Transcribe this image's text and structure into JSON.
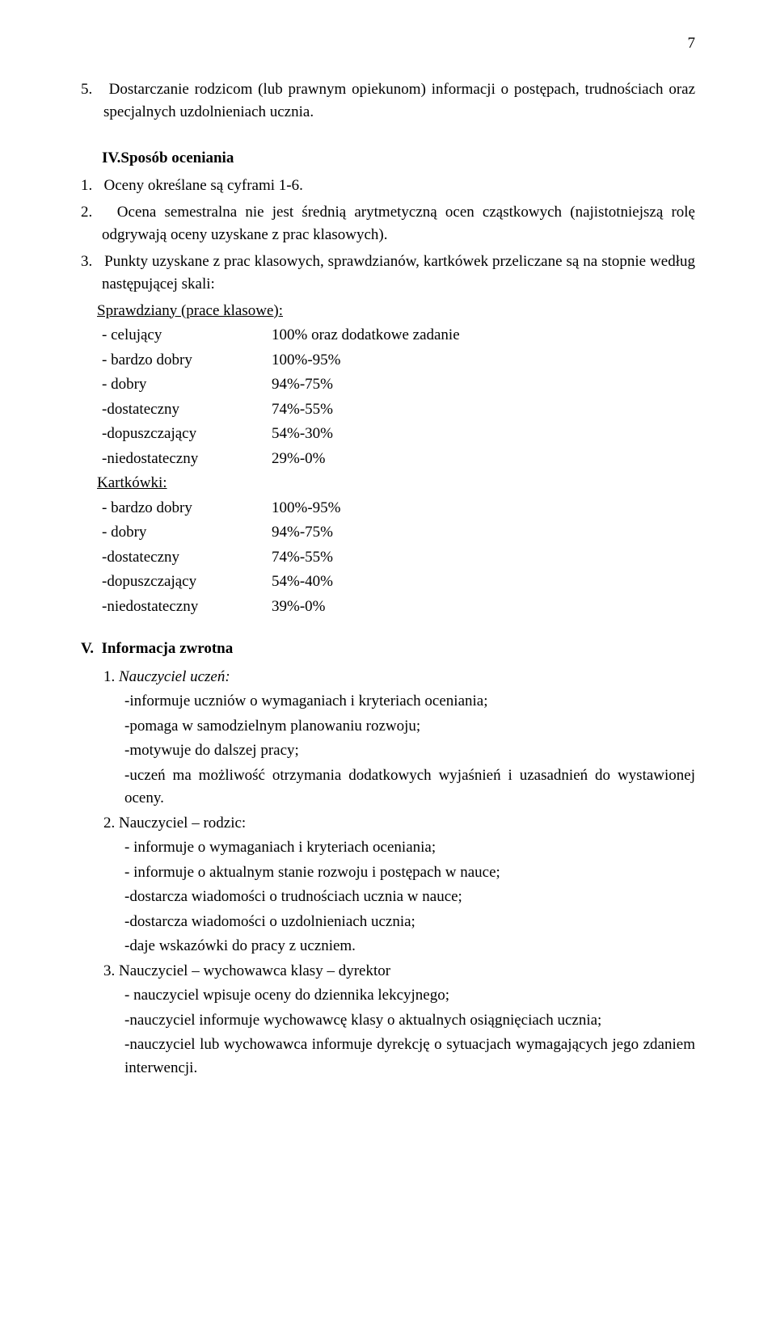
{
  "page_number": "7",
  "item5": {
    "num": "5.",
    "text": "Dostarczanie rodzicom (lub prawnym opiekunom) informacji o postępach, trudnościach oraz specjalnych uzdolnieniach ucznia."
  },
  "section_iv": {
    "title": "IV.Sposób oceniania",
    "p1": {
      "num": "1.",
      "text": "Oceny określane są cyframi 1-6."
    },
    "p2": {
      "num": "2.",
      "text": "Ocena semestralna nie jest średnią arytmetyczną ocen cząstkowych (najistotniejszą rolę odgrywają oceny uzyskane z prac klasowych)."
    },
    "p3": {
      "num": "3.",
      "text": "Punkty uzyskane z prac klasowych, sprawdzianów, kartkówek przeliczane są na stopnie według następującej skali:"
    },
    "spraw_label": " Sprawdziany (prace klasowe):",
    "spraw_rows": [
      {
        "label": "- celujący",
        "value": "100% oraz dodatkowe zadanie"
      },
      {
        "label": "- bardzo dobry",
        "value": "100%-95%"
      },
      {
        "label": "- dobry",
        "value": "94%-75%"
      },
      {
        "label": "-dostateczny",
        "value": "74%-55%"
      },
      {
        "label": "-dopuszczający",
        "value": "54%-30%"
      },
      {
        "label": "-niedostateczny",
        "value": "29%-0%"
      }
    ],
    "kart_label": "Kartkówki:",
    "kart_rows": [
      {
        "label": "- bardzo dobry",
        "value": "100%-95%"
      },
      {
        "label": "- dobry",
        "value": "94%-75%"
      },
      {
        "label": "-dostateczny",
        "value": "74%-55%"
      },
      {
        "label": "-dopuszczający",
        "value": "54%-40%"
      },
      {
        "label": "-niedostateczny",
        "value": "39%-0%"
      }
    ]
  },
  "section_v": {
    "title_prefix": "V.",
    "title_text": "Informacja zwrotna",
    "sub1": {
      "num": "1.",
      "label": "Nauczyciel uczeń:"
    },
    "sub1_items": [
      "-informuje uczniów o wymaganiach i kryteriach oceniania;",
      "-pomaga w samodzielnym planowaniu rozwoju;",
      "-motywuje do dalszej pracy;",
      "-uczeń ma możliwość otrzymania dodatkowych wyjaśnień i uzasadnień do wystawionej oceny."
    ],
    "sub2": {
      "num": "2.",
      "label": "Nauczyciel – rodzic:"
    },
    "sub2_items": [
      "- informuje o wymaganiach i kryteriach oceniania;",
      "- informuje o aktualnym stanie rozwoju i postępach w nauce;",
      "-dostarcza wiadomości o trudnościach ucznia w nauce;",
      "-dostarcza wiadomości o uzdolnieniach ucznia;",
      "-daje wskazówki do pracy z uczniem."
    ],
    "sub3": {
      "num": "3.",
      "label": "Nauczyciel – wychowawca klasy – dyrektor"
    },
    "sub3_items": [
      "- nauczyciel wpisuje oceny do dziennika lekcyjnego;",
      "-nauczyciel informuje wychowawcę klasy o aktualnych osiągnięciach ucznia;",
      "-nauczyciel lub wychowawca informuje dyrekcję o sytuacjach wymagających jego zdaniem interwencji."
    ]
  }
}
